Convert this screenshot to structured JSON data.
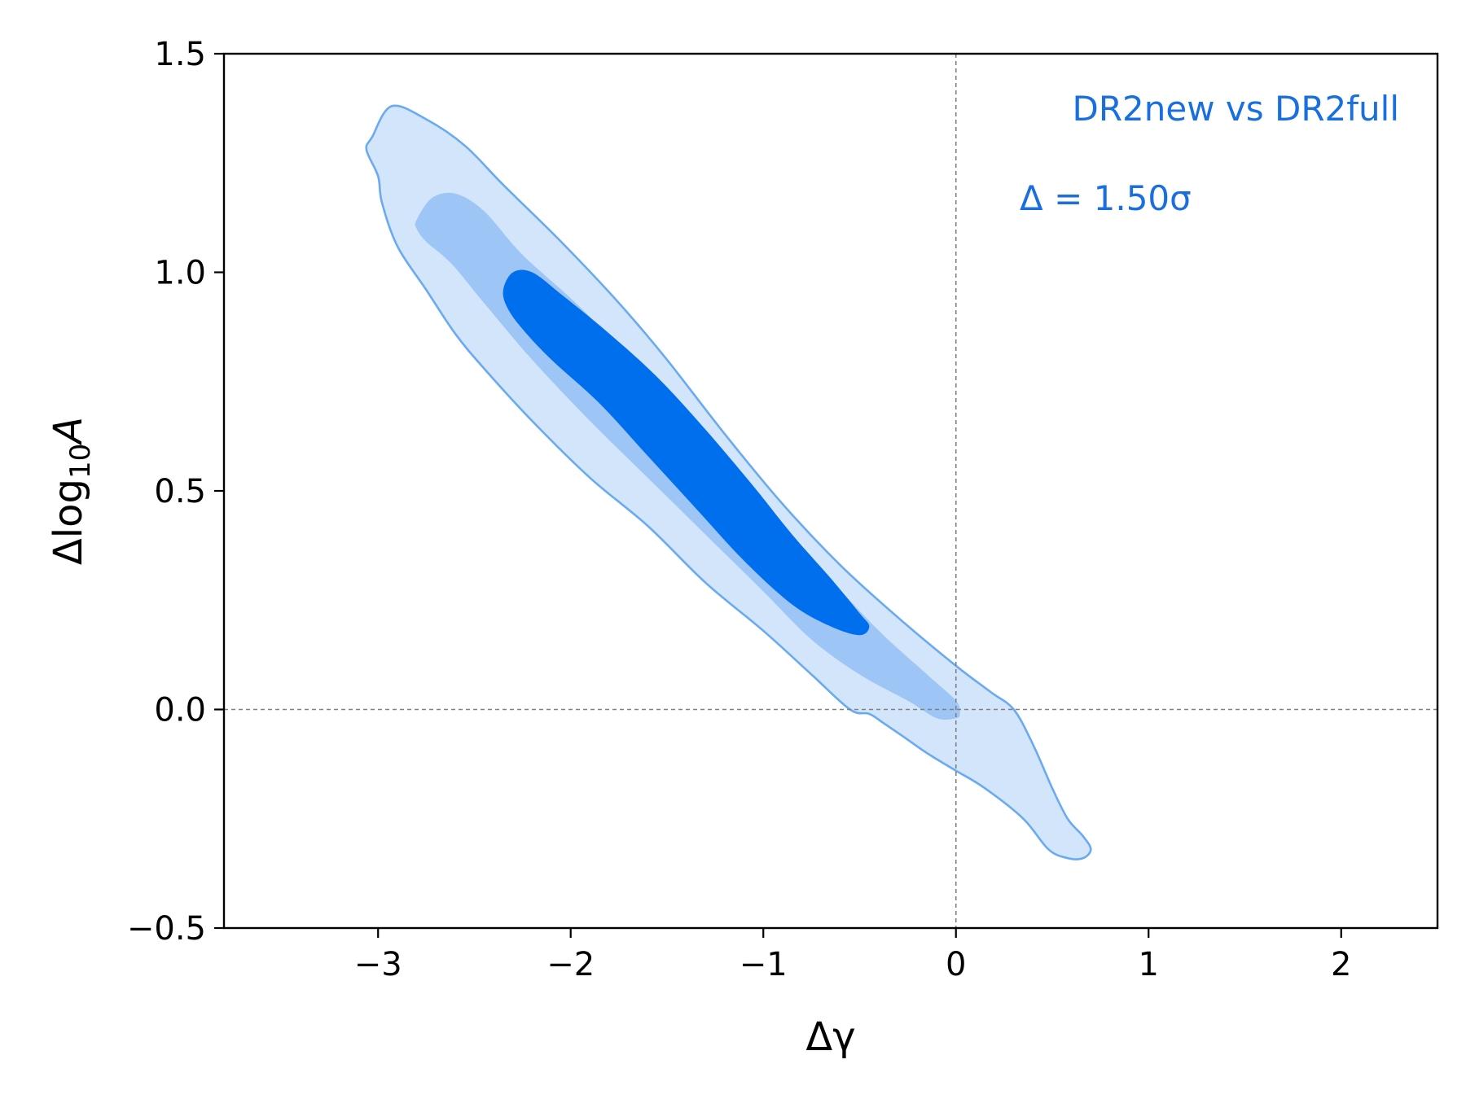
{
  "chart_data": {
    "type": "contour",
    "xlabel": "Δγ",
    "ylabel_main": "Δlog",
    "ylabel_sub": "10",
    "ylabel_tail": "A",
    "xlim": [
      -3.8,
      2.5
    ],
    "ylim": [
      -0.5,
      1.5
    ],
    "xticks": [
      -3,
      -2,
      -1,
      0,
      1,
      2
    ],
    "xtick_labels": [
      "−3",
      "−2",
      "−1",
      "0",
      "1",
      "2"
    ],
    "yticks": [
      -0.5,
      0.0,
      0.5,
      1.0,
      1.5
    ],
    "ytick_labels": [
      "−0.5",
      "0.0",
      "0.5",
      "1.0",
      "1.5"
    ],
    "reference_lines": {
      "x": 0,
      "y": 0
    },
    "annotation_title": "DR2new vs DR2full",
    "annotation_stat": "Δ = 1.50σ",
    "colors": {
      "outer_fill": "#d3e5fb",
      "middle_fill": "#9dc5f5",
      "inner_fill": "#006fed",
      "outline": "#6aaaf0",
      "annotation": "#1a6fde",
      "reference_line": "#808080"
    },
    "contours": [
      {
        "level": "outer",
        "points": [
          [
            -3.03,
            1.31
          ],
          [
            -2.93,
            1.38
          ],
          [
            -2.75,
            1.35
          ],
          [
            -2.55,
            1.29
          ],
          [
            -2.35,
            1.2
          ],
          [
            -2.05,
            1.07
          ],
          [
            -1.75,
            0.93
          ],
          [
            -1.5,
            0.8
          ],
          [
            -1.2,
            0.63
          ],
          [
            -0.9,
            0.47
          ],
          [
            -0.6,
            0.33
          ],
          [
            -0.3,
            0.21
          ],
          [
            0.0,
            0.1
          ],
          [
            0.18,
            0.04
          ],
          [
            0.3,
            0.0
          ],
          [
            0.4,
            -0.08
          ],
          [
            0.5,
            -0.18
          ],
          [
            0.58,
            -0.25
          ],
          [
            0.66,
            -0.29
          ],
          [
            0.7,
            -0.32
          ],
          [
            0.66,
            -0.34
          ],
          [
            0.58,
            -0.34
          ],
          [
            0.48,
            -0.32
          ],
          [
            0.35,
            -0.25
          ],
          [
            0.15,
            -0.18
          ],
          [
            0.0,
            -0.14
          ],
          [
            -0.15,
            -0.1
          ],
          [
            -0.28,
            -0.06
          ],
          [
            -0.38,
            -0.03
          ],
          [
            -0.45,
            -0.01
          ],
          [
            -0.55,
            0.0
          ],
          [
            -0.75,
            0.08
          ],
          [
            -1.0,
            0.18
          ],
          [
            -1.3,
            0.29
          ],
          [
            -1.6,
            0.42
          ],
          [
            -1.9,
            0.53
          ],
          [
            -2.2,
            0.66
          ],
          [
            -2.45,
            0.78
          ],
          [
            -2.6,
            0.86
          ],
          [
            -2.75,
            0.96
          ],
          [
            -2.9,
            1.06
          ],
          [
            -2.98,
            1.16
          ],
          [
            -3.0,
            1.22
          ],
          [
            -3.06,
            1.28
          ]
        ]
      },
      {
        "level": "middle",
        "points": [
          [
            -2.8,
            1.12
          ],
          [
            -2.72,
            1.17
          ],
          [
            -2.6,
            1.18
          ],
          [
            -2.45,
            1.14
          ],
          [
            -2.25,
            1.04
          ],
          [
            -1.95,
            0.92
          ],
          [
            -1.65,
            0.78
          ],
          [
            -1.35,
            0.62
          ],
          [
            -1.0,
            0.46
          ],
          [
            -0.7,
            0.32
          ],
          [
            -0.4,
            0.18
          ],
          [
            -0.15,
            0.08
          ],
          [
            0.0,
            0.02
          ],
          [
            0.02,
            -0.01
          ],
          [
            0.0,
            -0.02
          ],
          [
            -0.1,
            -0.02
          ],
          [
            -0.25,
            0.02
          ],
          [
            -0.5,
            0.08
          ],
          [
            -0.75,
            0.16
          ],
          [
            -1.0,
            0.27
          ],
          [
            -1.3,
            0.4
          ],
          [
            -1.6,
            0.53
          ],
          [
            -1.9,
            0.66
          ],
          [
            -2.2,
            0.8
          ],
          [
            -2.45,
            0.93
          ],
          [
            -2.62,
            1.02
          ],
          [
            -2.75,
            1.07
          ],
          [
            -2.8,
            1.1
          ]
        ]
      },
      {
        "level": "inner",
        "points": [
          [
            -2.35,
            0.96
          ],
          [
            -2.3,
            1.0
          ],
          [
            -2.2,
            1.0
          ],
          [
            -2.05,
            0.95
          ],
          [
            -1.8,
            0.86
          ],
          [
            -1.55,
            0.76
          ],
          [
            -1.3,
            0.64
          ],
          [
            -1.05,
            0.51
          ],
          [
            -0.85,
            0.4
          ],
          [
            -0.65,
            0.3
          ],
          [
            -0.5,
            0.22
          ],
          [
            -0.45,
            0.19
          ],
          [
            -0.5,
            0.17
          ],
          [
            -0.65,
            0.19
          ],
          [
            -0.85,
            0.24
          ],
          [
            -1.1,
            0.34
          ],
          [
            -1.35,
            0.46
          ],
          [
            -1.6,
            0.58
          ],
          [
            -1.85,
            0.7
          ],
          [
            -2.1,
            0.8
          ],
          [
            -2.25,
            0.87
          ],
          [
            -2.33,
            0.92
          ]
        ]
      }
    ]
  }
}
